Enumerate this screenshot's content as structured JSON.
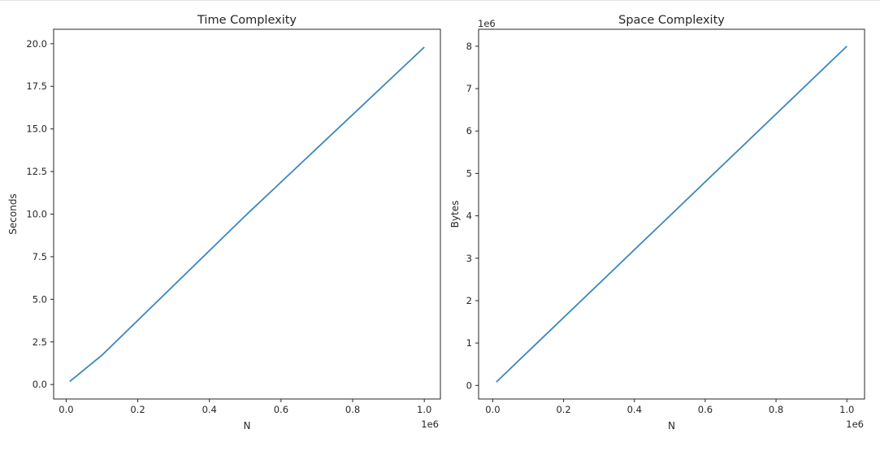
{
  "figure": {
    "colors": {
      "line": "#3a87bd",
      "axis": "#262626",
      "background": "#ffffff"
    }
  },
  "chart_data": [
    {
      "type": "line",
      "title": "Time Complexity",
      "xlabel": "N",
      "ylabel": "Seconds",
      "x_offset_label": "1e6",
      "y_offset_label": "",
      "xlim": [
        -35000,
        1045000
      ],
      "ylim": [
        -0.85,
        20.85
      ],
      "xticks": [
        0,
        200000,
        400000,
        600000,
        800000,
        1000000
      ],
      "xtick_labels": [
        "0.0",
        "0.2",
        "0.4",
        "0.6",
        "0.8",
        "1.0"
      ],
      "yticks": [
        0.0,
        2.5,
        5.0,
        7.5,
        10.0,
        12.5,
        15.0,
        17.5,
        20.0
      ],
      "ytick_labels": [
        "0.0",
        "2.5",
        "5.0",
        "7.5",
        "10.0",
        "12.5",
        "15.0",
        "17.5",
        "20.0"
      ],
      "grid": false,
      "series": [
        {
          "x": [
            10000,
            100000,
            500000,
            1000000
          ],
          "values": [
            0.18,
            1.72,
            9.9,
            19.8
          ]
        }
      ]
    },
    {
      "type": "line",
      "title": "Space Complexity",
      "xlabel": "N",
      "ylabel": "Bytes",
      "x_offset_label": "1e6",
      "y_offset_label": "1e6",
      "xlim": [
        -40000,
        1050000
      ],
      "ylim": [
        -320000,
        8400000
      ],
      "xticks": [
        0,
        200000,
        400000,
        600000,
        800000,
        1000000
      ],
      "xtick_labels": [
        "0.0",
        "0.2",
        "0.4",
        "0.6",
        "0.8",
        "1.0"
      ],
      "yticks": [
        0,
        1000000,
        2000000,
        3000000,
        4000000,
        5000000,
        6000000,
        7000000,
        8000000
      ],
      "ytick_labels": [
        "0",
        "1",
        "2",
        "3",
        "4",
        "5",
        "6",
        "7",
        "8"
      ],
      "grid": false,
      "series": [
        {
          "x": [
            10000,
            100000,
            500000,
            1000000
          ],
          "values": [
            80000,
            800000,
            4000000,
            8000000
          ]
        }
      ]
    }
  ]
}
